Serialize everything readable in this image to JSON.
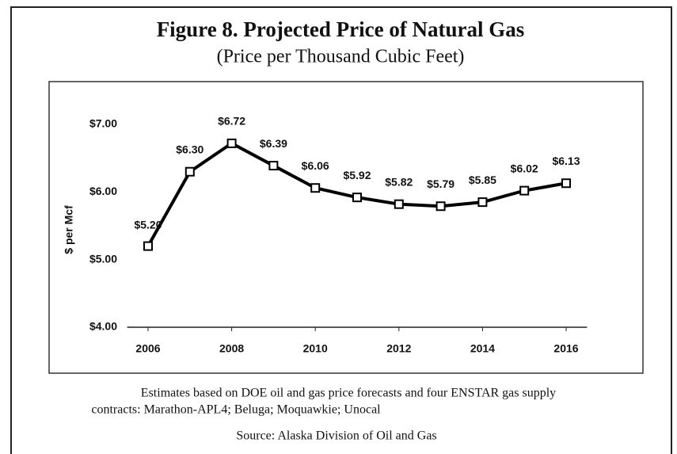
{
  "chart_data": {
    "type": "line",
    "title": "Figure 8. Projected Price of Natural Gas",
    "subtitle": "(Price per Thousand Cubic Feet)",
    "y_label": "$ per Mcf",
    "x": [
      2006,
      2007,
      2008,
      2009,
      2010,
      2011,
      2012,
      2013,
      2014,
      2015,
      2016
    ],
    "values": [
      5.2,
      6.3,
      6.72,
      6.39,
      6.06,
      5.92,
      5.82,
      5.79,
      5.85,
      6.02,
      6.13
    ],
    "value_labels": [
      "$5.20",
      "$6.30",
      "$6.72",
      "$6.39",
      "$6.06",
      "$5.92",
      "$5.82",
      "$5.79",
      "$5.85",
      "$6.02",
      "$6.13"
    ],
    "color": "#000000",
    "xlim": [
      2005.5,
      2016.5
    ],
    "xticks": [
      2006,
      2008,
      2010,
      2012,
      2014,
      2016
    ],
    "ylim": [
      4,
      7
    ],
    "yticks": [
      {
        "value": 4,
        "label": "$4.00"
      },
      {
        "value": 5,
        "label": "$5.00"
      },
      {
        "value": 6,
        "label": "$6.00"
      },
      {
        "value": 7,
        "label": "$7.00"
      }
    ],
    "grid": false,
    "note": [
      "Estimates based on DOE oil and gas price forecasts and four ENSTAR gas supply",
      "contracts: Marathon-APL4; Beluga; Moquawkie; Unocal"
    ],
    "source": "Source: Alaska Division of Oil and Gas"
  }
}
